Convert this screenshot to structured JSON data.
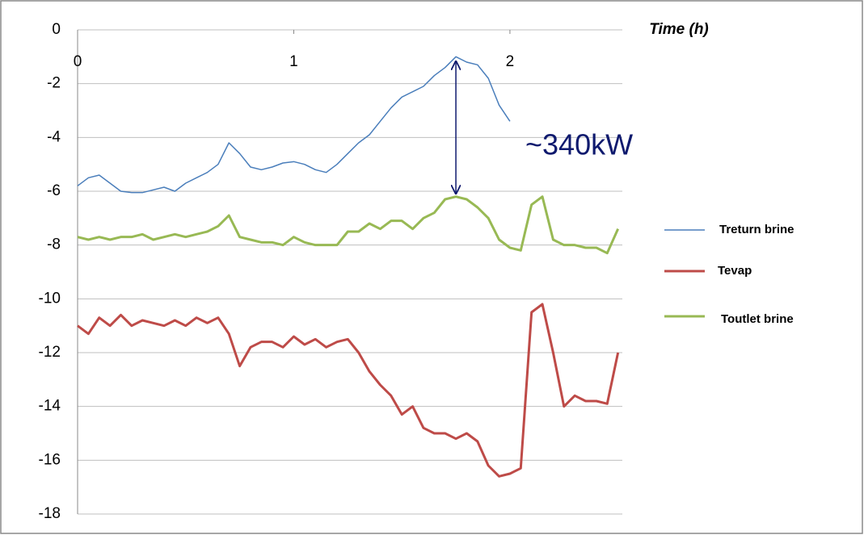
{
  "chart_data": {
    "type": "line",
    "title": "Time (h)",
    "annotation": "~340kW",
    "x": [
      0,
      0.05,
      0.1,
      0.15,
      0.2,
      0.25,
      0.3,
      0.35,
      0.4,
      0.45,
      0.5,
      0.55,
      0.6,
      0.65,
      0.7,
      0.75,
      0.8,
      0.85,
      0.9,
      0.95,
      1,
      1.05,
      1.1,
      1.15,
      1.2,
      1.25,
      1.3,
      1.35,
      1.4,
      1.45,
      1.5,
      1.55,
      1.6,
      1.65,
      1.7,
      1.75,
      1.8,
      1.85,
      1.9,
      1.95,
      2,
      2.05,
      2.1,
      2.15,
      2.2,
      2.25,
      2.3,
      2.35,
      2.4,
      2.45,
      2.5
    ],
    "series": [
      {
        "name": "Treturn brine",
        "color": "#4a7ebb",
        "line_width": 1.5,
        "values": [
          -5.8,
          -5.5,
          -5.4,
          -5.7,
          -6.0,
          -6.05,
          -6.05,
          -5.95,
          -5.85,
          -6.0,
          -5.7,
          -5.5,
          -5.3,
          -5.0,
          -4.2,
          -4.6,
          -5.1,
          -5.2,
          -5.1,
          -4.95,
          -4.9,
          -5.0,
          -5.2,
          -5.3,
          -5.0,
          -4.6,
          -4.2,
          -3.9,
          -3.4,
          -2.9,
          -2.5,
          -2.3,
          -2.1,
          -1.7,
          -1.4,
          -1.0,
          -1.2,
          -1.3,
          -1.8,
          -2.8,
          -3.4,
          null,
          null,
          null,
          null,
          null,
          null,
          null,
          null,
          null,
          null
        ]
      },
      {
        "name": "Tevap",
        "color": "#be4b48",
        "line_width": 3,
        "values": [
          -11.0,
          -11.3,
          -10.7,
          -11.0,
          -10.6,
          -11.0,
          -10.8,
          -10.9,
          -11.0,
          -10.8,
          -11.0,
          -10.7,
          -10.9,
          -10.7,
          -11.3,
          -12.5,
          -11.8,
          -11.6,
          -11.6,
          -11.8,
          -11.4,
          -11.7,
          -11.5,
          -11.8,
          -11.6,
          -11.5,
          -12.0,
          -12.7,
          -13.2,
          -13.6,
          -14.3,
          -14.0,
          -14.8,
          -15.0,
          -15.0,
          -15.2,
          -15.0,
          -15.3,
          -16.2,
          -16.6,
          -16.5,
          -16.3,
          -10.5,
          -10.2,
          -12.0,
          -14.0,
          -13.6,
          -13.8,
          -13.8,
          -13.9,
          -12.0
        ]
      },
      {
        "name": "Toutlet brine",
        "color": "#98b954",
        "line_width": 3,
        "values": [
          -7.7,
          -7.8,
          -7.7,
          -7.8,
          -7.7,
          -7.7,
          -7.6,
          -7.8,
          -7.7,
          -7.6,
          -7.7,
          -7.6,
          -7.5,
          -7.3,
          -6.9,
          -7.7,
          -7.8,
          -7.9,
          -7.9,
          -8.0,
          -7.7,
          -7.9,
          -8.0,
          -8.0,
          -8.0,
          -7.5,
          -7.5,
          -7.2,
          -7.4,
          -7.1,
          -7.1,
          -7.4,
          -7.0,
          -6.8,
          -6.3,
          -6.2,
          -6.3,
          -6.6,
          -7.0,
          -7.8,
          -8.1,
          -8.2,
          -6.5,
          -6.2,
          -7.8,
          -8.0,
          -8.0,
          -8.1,
          -8.1,
          -8.3,
          -7.4
        ]
      }
    ],
    "xlim": [
      0,
      2.52
    ],
    "xticks": [
      0,
      1,
      2
    ],
    "ylim": [
      -18,
      0
    ],
    "yticks": [
      0,
      -2,
      -4,
      -6,
      -8,
      -10,
      -12,
      -14,
      -16,
      -18
    ],
    "grid": true,
    "legend": "right"
  }
}
